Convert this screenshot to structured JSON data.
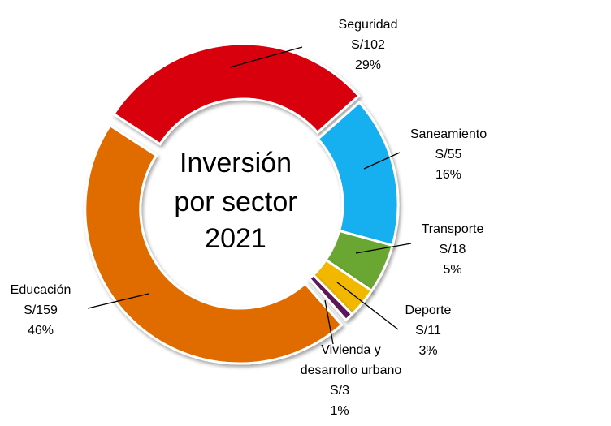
{
  "chart_data": {
    "type": "pie",
    "variant": "donut",
    "title": [
      "Inversión",
      "por sector",
      "2021"
    ],
    "currency_prefix": "S/",
    "slices": [
      {
        "name": "Seguridad",
        "value": 102,
        "value_label": "S/102",
        "percent_label": "29%",
        "color": "#d8000c"
      },
      {
        "name": "Saneamiento",
        "value": 55,
        "value_label": "S/55",
        "percent_label": "16%",
        "color": "#19aff0"
      },
      {
        "name": "Transporte",
        "value": 18,
        "value_label": "S/18",
        "percent_label": "5%",
        "color": "#6ba631"
      },
      {
        "name": "Deporte",
        "value": 11,
        "value_label": "S/11",
        "percent_label": "3%",
        "color": "#f2b800"
      },
      {
        "name": "Vivienda y desarrollo urbano",
        "name_lines": [
          "Vivienda y",
          "desarrollo urbano"
        ],
        "value": 3,
        "value_label": "S/3",
        "percent_label": "1%",
        "color": "#5b1458"
      },
      {
        "name": "Educación",
        "value": 159,
        "value_label": "S/159",
        "percent_label": "46%",
        "color": "#e06c00"
      }
    ],
    "legend": "none"
  }
}
